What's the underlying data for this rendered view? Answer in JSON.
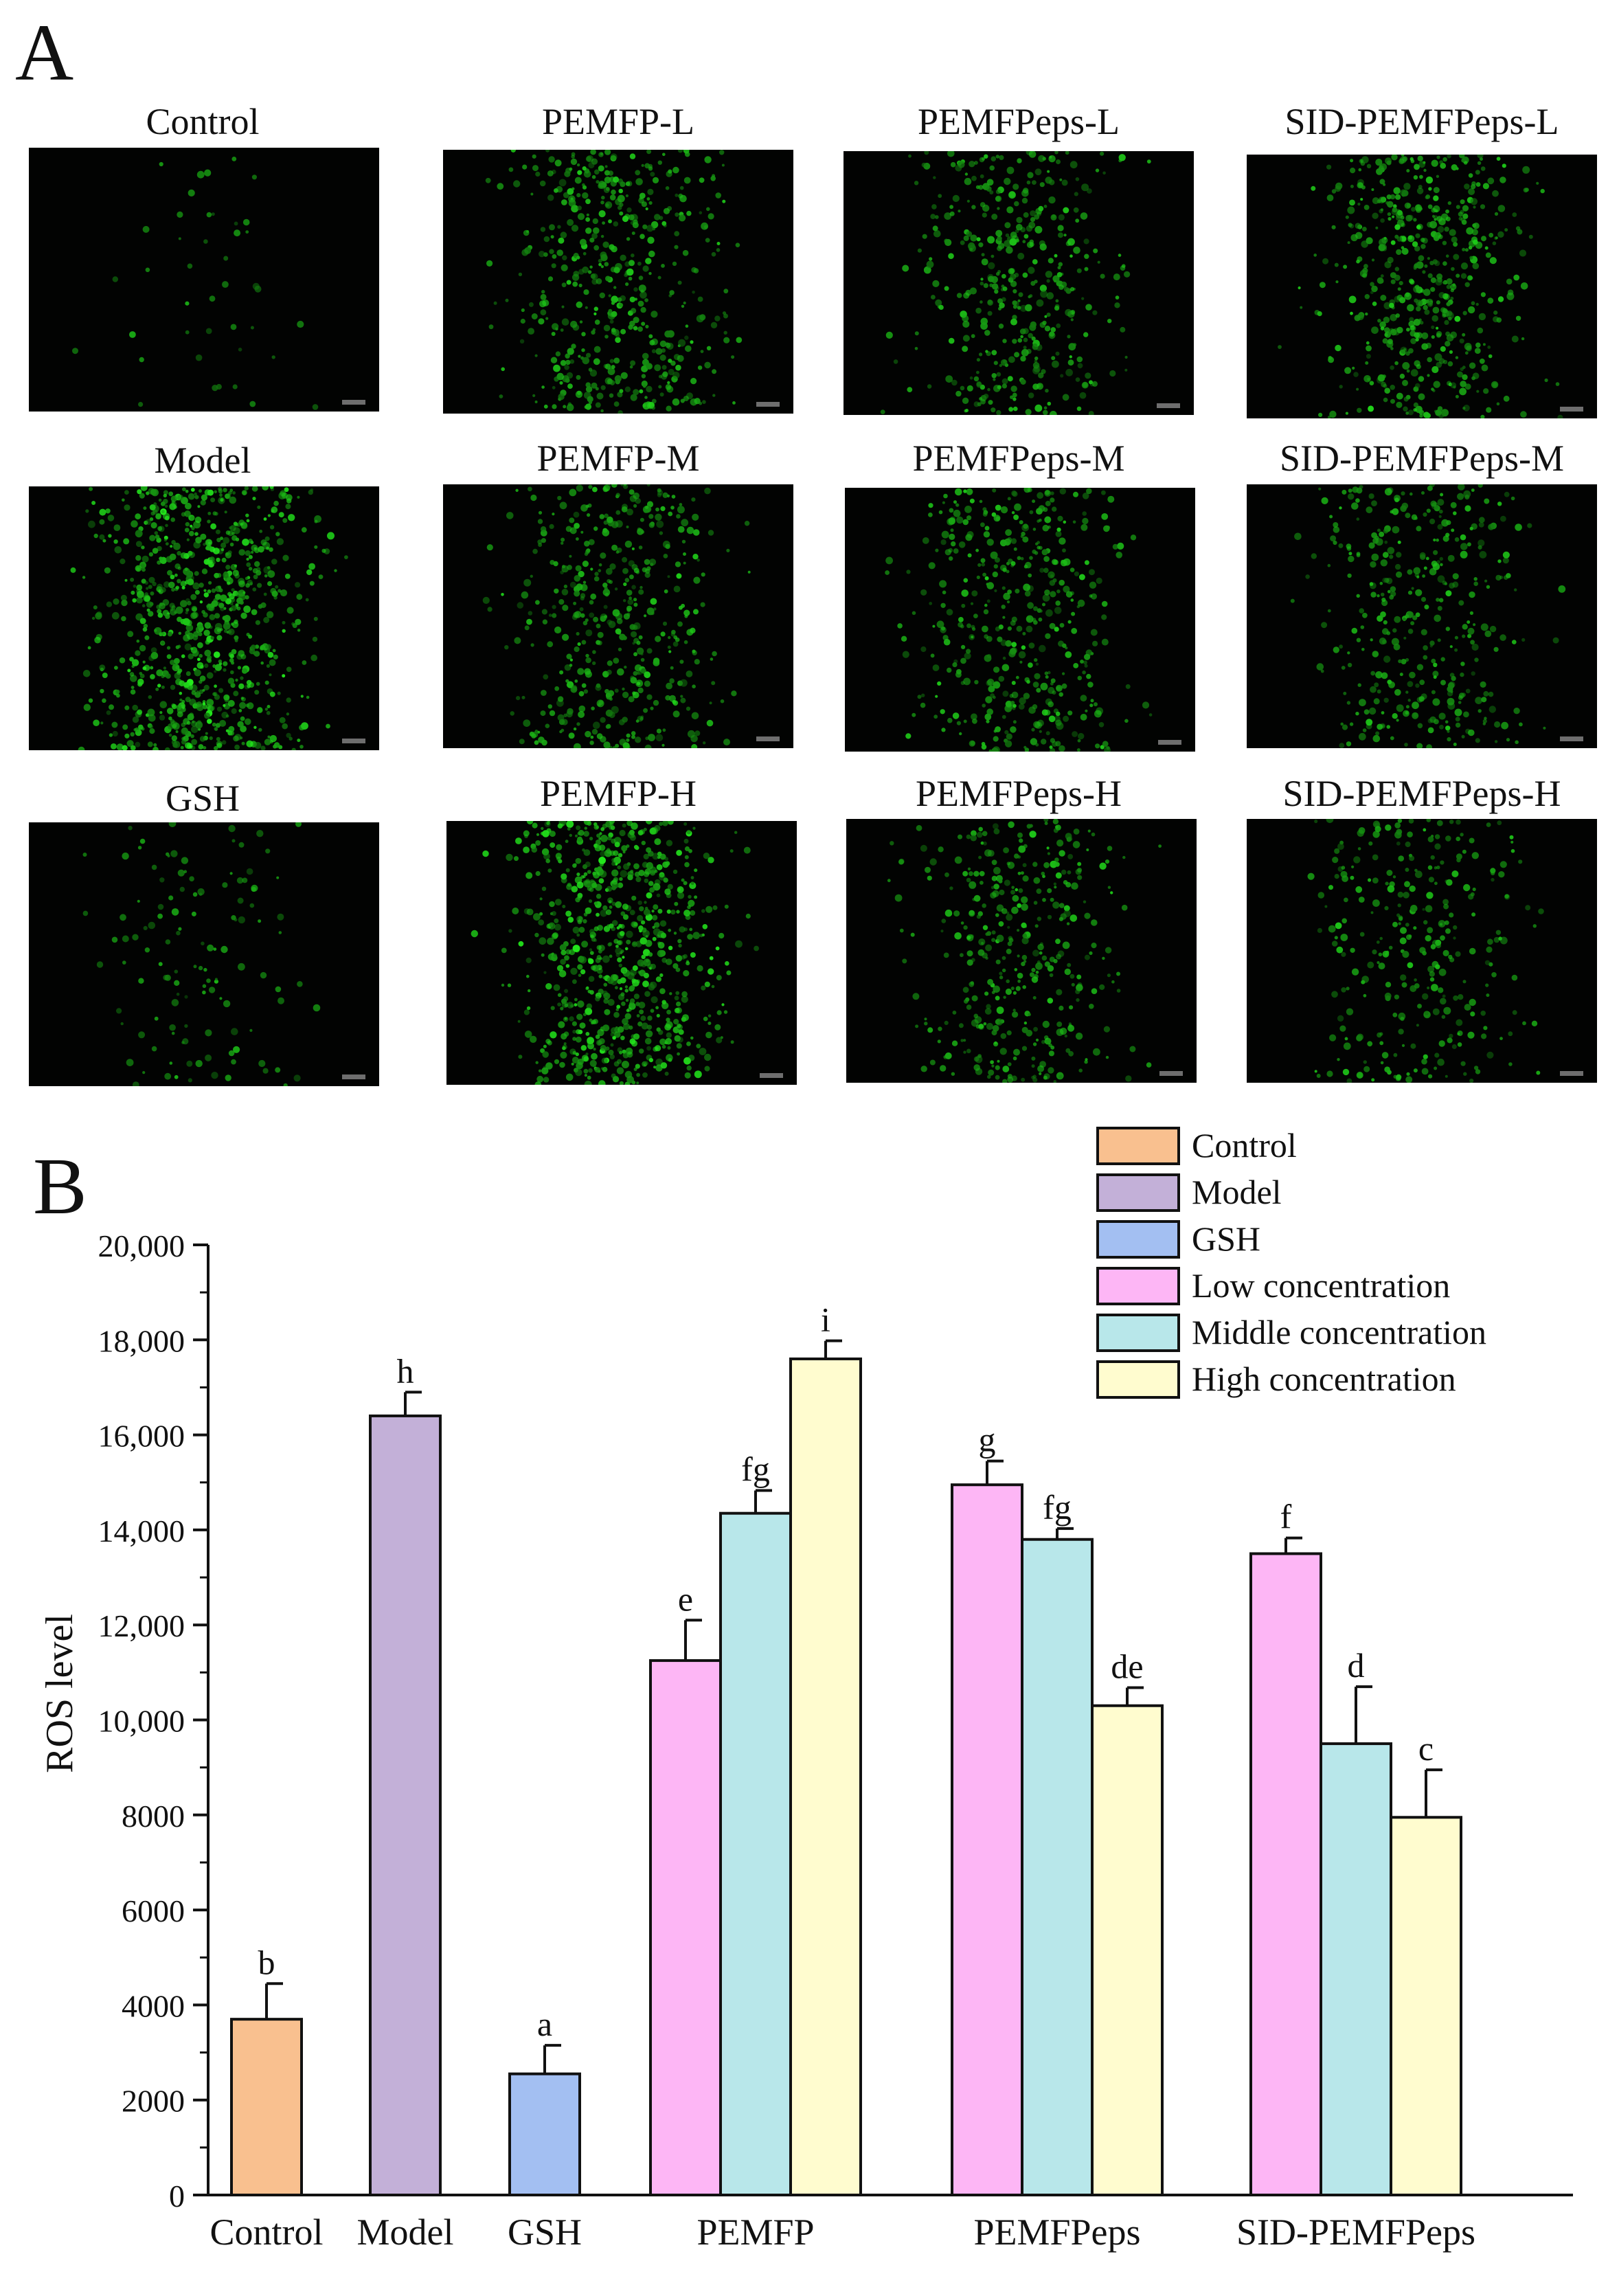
{
  "figure": {
    "panel_a_letter": "A",
    "panel_b_letter": "B"
  },
  "micrographs": [
    {
      "label": "Control",
      "intensity": 0.03
    },
    {
      "label": "PEMFP-L",
      "intensity": 0.55
    },
    {
      "label": "PEMFPeps-L",
      "intensity": 0.45
    },
    {
      "label": "SID-PEMFPeps-L",
      "intensity": 0.6
    },
    {
      "label": "Model",
      "intensity": 0.95
    },
    {
      "label": "PEMFP-M",
      "intensity": 0.5
    },
    {
      "label": "PEMFPeps-M",
      "intensity": 0.48
    },
    {
      "label": "SID-PEMFPeps-M",
      "intensity": 0.4
    },
    {
      "label": "GSH",
      "intensity": 0.12
    },
    {
      "label": "PEMFP-H",
      "intensity": 0.85
    },
    {
      "label": "PEMFPeps-H",
      "intensity": 0.42
    },
    {
      "label": "SID-PEMFPeps-H",
      "intensity": 0.32
    }
  ],
  "chart_data": {
    "type": "bar",
    "ylabel": "ROS level",
    "xlabel": "",
    "ylim": [
      0,
      20000
    ],
    "yticks": [
      "0",
      "2000",
      "4000",
      "6000",
      "8000",
      "10,000",
      "12,000",
      "14,000",
      "16,000",
      "18,000",
      "20,000"
    ],
    "ytick_values": [
      0,
      2000,
      4000,
      6000,
      8000,
      10000,
      12000,
      14000,
      16000,
      18000,
      20000
    ],
    "grid": false,
    "legend_position": "top-right",
    "legend": [
      {
        "label": "Control",
        "color": "#F9C08F"
      },
      {
        "label": "Model",
        "color": "#C3B0D8"
      },
      {
        "label": "GSH",
        "color": "#A3BFF2"
      },
      {
        "label": "Low concentration",
        "color": "#FDB6F5"
      },
      {
        "label": "Middle concentration",
        "color": "#B8E7EA"
      },
      {
        "label": "High concentration",
        "color": "#FFFCCF"
      }
    ],
    "categories": [
      "Control",
      "Model",
      "GSH",
      "PEMFP",
      "PEMFPeps",
      "SID-PEMFPeps"
    ],
    "bars": [
      {
        "category": "Control",
        "series": "Control",
        "value": 3700,
        "error": 750,
        "letter": "b",
        "color": "#F9C08F"
      },
      {
        "category": "Model",
        "series": "Model",
        "value": 16400,
        "error": 500,
        "letter": "h",
        "color": "#C3B0D8"
      },
      {
        "category": "GSH",
        "series": "GSH",
        "value": 2550,
        "error": 600,
        "letter": "a",
        "color": "#A3BFF2"
      },
      {
        "category": "PEMFP",
        "series": "Low concentration",
        "value": 11250,
        "error": 850,
        "letter": "e",
        "color": "#FDB6F5"
      },
      {
        "category": "PEMFP",
        "series": "Middle concentration",
        "value": 14350,
        "error": 480,
        "letter": "fg",
        "color": "#B8E7EA"
      },
      {
        "category": "PEMFP",
        "series": "High concentration",
        "value": 17600,
        "error": 380,
        "letter": "i",
        "color": "#FFFCCF"
      },
      {
        "category": "PEMFPeps",
        "series": "Low concentration",
        "value": 14950,
        "error": 500,
        "letter": "g",
        "color": "#FDB6F5"
      },
      {
        "category": "PEMFPeps",
        "series": "Middle concentration",
        "value": 13800,
        "error": 230,
        "letter": "fg",
        "color": "#B8E7EA"
      },
      {
        "category": "PEMFPeps",
        "series": "High concentration",
        "value": 10300,
        "error": 380,
        "letter": "de",
        "color": "#FFFCCF"
      },
      {
        "category": "SID-PEMFPeps",
        "series": "Low concentration",
        "value": 13500,
        "error": 330,
        "letter": "f",
        "color": "#FDB6F5"
      },
      {
        "category": "SID-PEMFPeps",
        "series": "Middle concentration",
        "value": 9500,
        "error": 1200,
        "letter": "d",
        "color": "#B8E7EA"
      },
      {
        "category": "SID-PEMFPeps",
        "series": "High concentration",
        "value": 7950,
        "error": 1000,
        "letter": "c",
        "color": "#FFFCCF"
      }
    ]
  }
}
